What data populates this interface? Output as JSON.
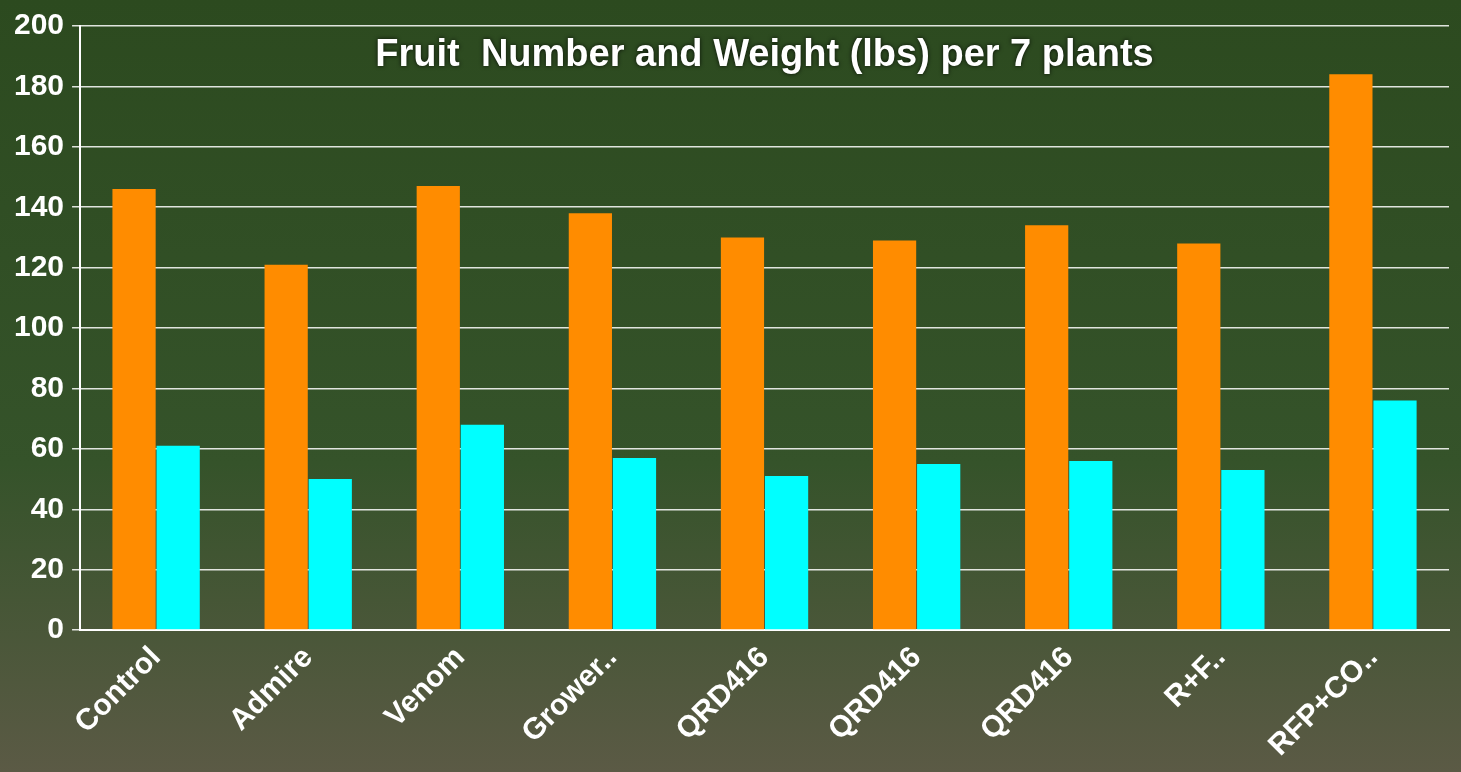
{
  "chart_data": {
    "type": "bar",
    "title": "Fruit  Number and Weight (lbs) per 7 plants",
    "categories": [
      "Control",
      "Admire",
      "Venom",
      "Grower..",
      "QRD416",
      "QRD416",
      "QRD416",
      "R+F..",
      "RFP+CO.."
    ],
    "series": [
      {
        "color": "#ff8c00",
        "values": [
          146,
          121,
          147,
          138,
          130,
          129,
          134,
          128,
          184
        ]
      },
      {
        "color": "#00ffff",
        "values": [
          61,
          50,
          68,
          57,
          51,
          55,
          56,
          53,
          76
        ]
      }
    ],
    "ylim": [
      0,
      200
    ],
    "yticks": [
      0,
      20,
      40,
      60,
      80,
      100,
      120,
      140,
      160,
      180,
      200
    ],
    "grid": true
  }
}
